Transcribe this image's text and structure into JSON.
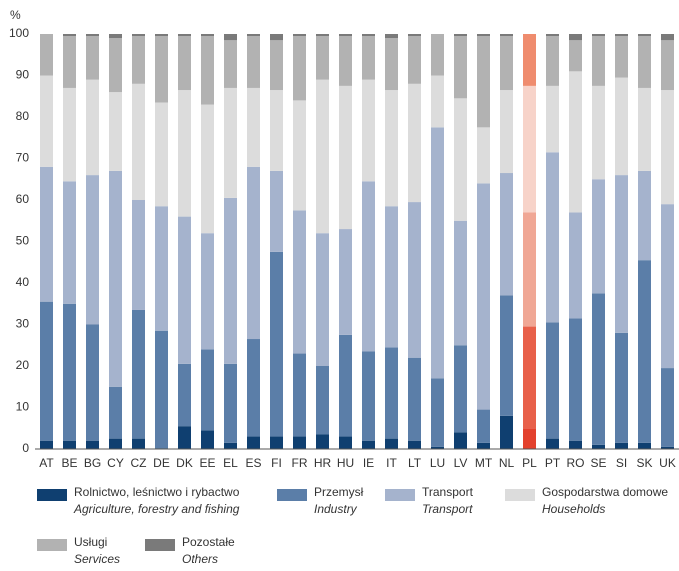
{
  "chart_data": {
    "type": "stacked_bar",
    "y_label": "%",
    "categories": [
      "AT",
      "BE",
      "BG",
      "CY",
      "CZ",
      "DE",
      "DK",
      "EE",
      "EL",
      "ES",
      "FI",
      "FR",
      "HR",
      "HU",
      "IE",
      "IT",
      "LT",
      "LU",
      "LV",
      "MT",
      "NL",
      "PL",
      "PT",
      "RO",
      "SE",
      "SI",
      "SK",
      "UK"
    ],
    "series": [
      {
        "name": "Rolnictwo, leśnictwo i rybactwo",
        "name_en": "Agriculture, forestry and fishing",
        "color": "#0f3f70",
        "highlight_color": "#e3412d",
        "values": [
          2,
          2,
          2,
          2.5,
          2.5,
          0.2,
          5.5,
          4.5,
          1.5,
          3,
          3,
          3,
          3.5,
          3,
          2,
          2.5,
          2,
          0.5,
          4,
          1.5,
          8,
          5,
          2.5,
          2,
          1,
          1.5,
          1.5,
          0.5
        ]
      },
      {
        "name": "Przemysł",
        "name_en": "Industry",
        "color": "#5b7ea8",
        "highlight_color": "#e8604a",
        "values": [
          33.5,
          33,
          28,
          12.5,
          31,
          28.3,
          15,
          19.5,
          19,
          23.5,
          44.5,
          20,
          16.5,
          24.5,
          21.5,
          22,
          20,
          16.5,
          21,
          8,
          29,
          24.5,
          28,
          29.5,
          36.5,
          26.5,
          44,
          19
        ]
      },
      {
        "name": "Transport",
        "name_en": "Transport",
        "color": "#a5b3cd",
        "highlight_color": "#f0a795",
        "values": [
          32.5,
          29.5,
          36,
          52,
          26.5,
          30,
          35.5,
          28,
          40,
          41.5,
          19.5,
          34.5,
          32,
          25.5,
          41,
          34,
          37.5,
          60.5,
          30,
          54.5,
          29.5,
          27.5,
          41,
          25.5,
          27.5,
          38,
          21.5,
          39.5
        ]
      },
      {
        "name": "Gospodarstwa domowe",
        "name_en": "Households",
        "color": "#dcdcdc",
        "highlight_color": "#f7d3c9",
        "values": [
          22,
          22.5,
          23,
          19,
          28,
          25,
          30.5,
          31,
          26.5,
          19,
          19.5,
          26.5,
          37,
          34.5,
          24.5,
          28,
          28.5,
          12.5,
          29.5,
          13.5,
          20,
          30.5,
          16,
          34,
          22.5,
          23.5,
          20,
          27.5
        ]
      },
      {
        "name": "Usługi",
        "name_en": "Services",
        "color": "#b2b2b2",
        "highlight_color": "#ef8c6e",
        "values": [
          10,
          12.5,
          10.5,
          13,
          11.5,
          16,
          13,
          16.5,
          11.5,
          12.5,
          12,
          15.5,
          10.5,
          12,
          10.5,
          12.5,
          11.5,
          10,
          15,
          22,
          13,
          12.5,
          12,
          7.5,
          12,
          10,
          12.5,
          12
        ]
      },
      {
        "name": "Pozostałe",
        "name_en": "Others",
        "color": "#7a7a7a",
        "highlight_color": "#c0392b",
        "values": [
          0,
          0.5,
          0.5,
          1,
          0.5,
          0.5,
          0.5,
          0.5,
          1.5,
          0.5,
          1.5,
          0.5,
          0.5,
          0.5,
          0.5,
          1,
          0.5,
          0,
          0.5,
          0.5,
          0.5,
          0,
          0.5,
          1.5,
          0.5,
          0.5,
          0.5,
          1.5
        ]
      }
    ],
    "highlight_index": 21,
    "ylim": [
      0,
      100
    ],
    "yticks": [
      0,
      10,
      20,
      30,
      40,
      50,
      60,
      70,
      80,
      90,
      100
    ],
    "grid": false
  }
}
